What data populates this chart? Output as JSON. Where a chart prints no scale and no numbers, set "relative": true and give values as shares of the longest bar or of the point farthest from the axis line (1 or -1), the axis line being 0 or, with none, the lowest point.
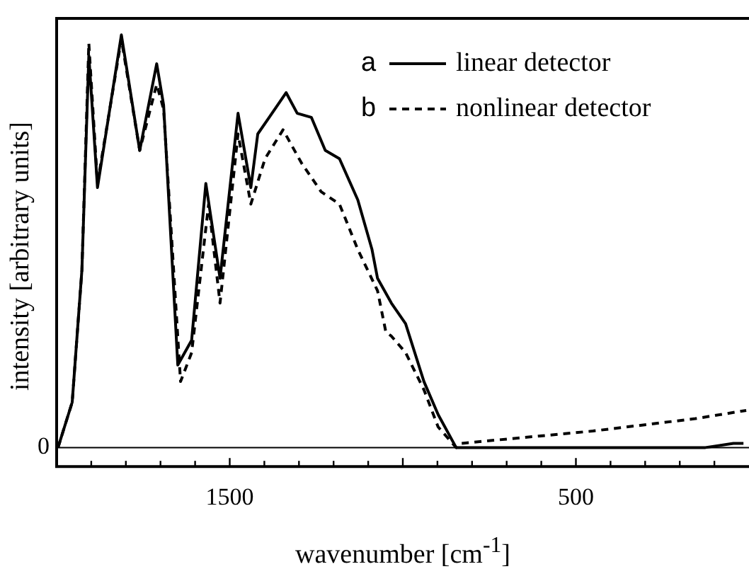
{
  "chart_data": {
    "type": "line",
    "relative": true,
    "xlabel": "wavenumber [cm$^{-1}$]",
    "ylabel": "intensity [arbitrary units]",
    "xlim": [
      2000,
      0
    ],
    "xticks": [
      {
        "value": 1900,
        "label": null
      },
      {
        "value": 1800,
        "label": null
      },
      {
        "value": 1700,
        "label": null
      },
      {
        "value": 1600,
        "label": null
      },
      1500,
      {
        "value": 1400,
        "label": null
      },
      {
        "value": 1300,
        "label": null
      },
      {
        "value": 1200,
        "label": null
      },
      {
        "value": 1100,
        "label": null
      },
      {
        "value": 1000,
        "label": null
      },
      {
        "value": 900,
        "label": null
      },
      {
        "value": 800,
        "label": null
      },
      {
        "value": 700,
        "label": null
      },
      {
        "value": 600,
        "label": null
      },
      500,
      {
        "value": 400,
        "label": null
      },
      {
        "value": 300,
        "label": null
      },
      {
        "value": 200,
        "label": null
      },
      {
        "value": 100,
        "label": null
      }
    ],
    "ref_lines": [
      {
        "axis": "y",
        "value": 0,
        "label": "0"
      }
    ],
    "annotations": [
      "a",
      "b"
    ],
    "legend": "top right",
    "grid": false,
    "marker": "none",
    "series": [
      {
        "name": "linear detector",
        "color": "#000000",
        "line_style": "solid",
        "x": [
          1996,
          1955,
          1927,
          1907,
          1882,
          1813,
          1760,
          1711,
          1691,
          1650,
          1610,
          1569,
          1528,
          1476,
          1439,
          1419,
          1386,
          1337,
          1305,
          1264,
          1224,
          1183,
          1130,
          1089,
          1073,
          1033,
          992,
          939,
          898,
          846,
          817,
          533,
          126,
          45,
          16
        ],
        "values": [
          0,
          0.11,
          0.43,
          0.95,
          0.63,
          1.0,
          0.72,
          0.93,
          0.83,
          0.2,
          0.26,
          0.64,
          0.41,
          0.81,
          0.63,
          0.76,
          0.8,
          0.86,
          0.81,
          0.8,
          0.72,
          0.7,
          0.6,
          0.48,
          0.41,
          0.35,
          0.3,
          0.16,
          0.08,
          0.0,
          0,
          0,
          0.0,
          0.01,
          0.01
        ]
      },
      {
        "name": "nonlinear detector",
        "color": "#000000",
        "line_style": "dashed",
        "x": [
          1996,
          1955,
          1927,
          1907,
          1882,
          1813,
          1760,
          1711,
          1691,
          1642,
          1610,
          1561,
          1528,
          1476,
          1439,
          1398,
          1346,
          1293,
          1236,
          1183,
          1130,
          1073,
          1049,
          1033,
          992,
          939,
          898,
          846,
          833,
          451,
          155,
          8
        ],
        "values": [
          0,
          0.11,
          0.43,
          0.98,
          0.64,
          0.99,
          0.72,
          0.88,
          0.82,
          0.16,
          0.23,
          0.59,
          0.35,
          0.76,
          0.59,
          0.7,
          0.77,
          0.69,
          0.62,
          0.59,
          0.48,
          0.38,
          0.28,
          0.27,
          0.23,
          0.14,
          0.05,
          0.0,
          0.01,
          0.04,
          0.07,
          0.09
        ]
      }
    ]
  }
}
